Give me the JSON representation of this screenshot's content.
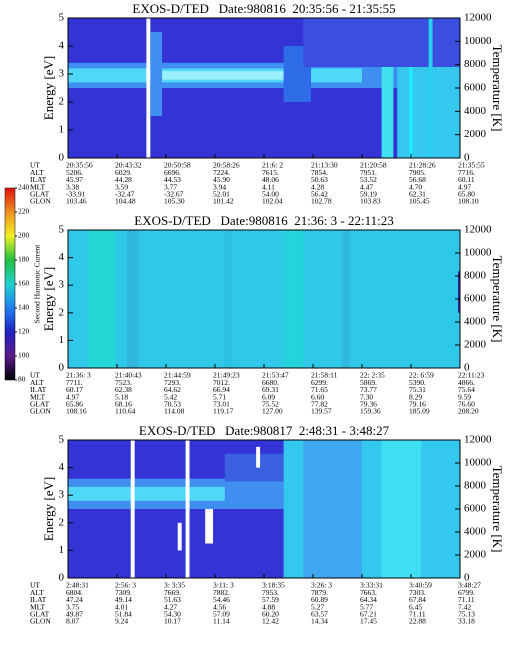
{
  "chart_data": [
    {
      "type": "spectrogram",
      "title": "EXOS-D/TED   Date:980816  20:35:56 - 21:35:55",
      "y_label": "Energy [eV]",
      "ylim": [
        0,
        5
      ],
      "yticks": [
        0,
        1,
        2,
        3,
        4,
        5
      ],
      "y2_label": "Temperature [K]",
      "y2lim": [
        0,
        12000
      ],
      "y2ticks": [
        0,
        2000,
        4000,
        6000,
        8000,
        10000,
        12000
      ],
      "ephemeris": {
        "labels": [
          "UT",
          "ALT",
          "ILAT",
          "MLT",
          "GLAT",
          "GLON"
        ],
        "rows": [
          [
            "20:35:56",
            "20:43:32",
            "20:50:58",
            "20:58:26",
            "21:6: 2",
            "21:13:30",
            "21:20:58",
            "21:28:26",
            "21:35:55"
          ],
          [
            "5206.",
            "6029.",
            "6696.",
            "7224.",
            "7615.",
            "7854.",
            "7951.",
            "7905.",
            "7716."
          ],
          [
            "45.97",
            "44.28",
            "44.53",
            "45.90",
            "48.06",
            "50.63",
            "53.52",
            "56.68",
            "60.11"
          ],
          [
            "3.38",
            "3.59",
            "3.77",
            "3.94",
            "4.11",
            "4.28",
            "4.47",
            "4.70",
            "4.97"
          ],
          [
            "-33.91",
            "-32.47",
            "-32.67",
            "52.01",
            "54.00",
            "56.42",
            "59.19",
            "62.31",
            "65.80"
          ],
          [
            "103.46",
            "104.48",
            "105.30",
            "101.42",
            "102.04",
            "102.78",
            "103.83",
            "105.45",
            "108.10"
          ]
        ]
      }
    },
    {
      "type": "spectrogram",
      "title": "EXOS-D/TED   Date:980816  21:36: 3 - 22:11:23",
      "y_label": "Energy [eV]",
      "ylim": [
        0,
        5
      ],
      "yticks": [
        0,
        1,
        2,
        3,
        4,
        5
      ],
      "y2_label": "Temperature [K]",
      "y2lim": [
        0,
        12000
      ],
      "y2ticks": [
        0,
        2000,
        4000,
        6000,
        8000,
        10000,
        12000
      ],
      "colorbar": {
        "label": "Second Harmonic Current",
        "lim": [
          80,
          240
        ],
        "ticks": [
          80,
          100,
          120,
          140,
          160,
          180,
          200,
          220,
          240
        ]
      },
      "ephemeris": {
        "labels": [
          "UT",
          "ALT",
          "ILAT",
          "MLT",
          "GLAT",
          "GLON"
        ],
        "rows": [
          [
            "21:36: 3",
            "21:40:43",
            "21:44:59",
            "21:49:23",
            "21:53:47",
            "21:58:11",
            "22: 2:35",
            "22: 6:59",
            "22:11:23"
          ],
          [
            "7711.",
            "7523.",
            "7293.",
            "7012.",
            "6680.",
            "6299.",
            "5869.",
            "5390.",
            "4866."
          ],
          [
            "60.17",
            "62.38",
            "64.62",
            "66.94",
            "69.31",
            "71.65",
            "73.77",
            "75.31",
            "75.64"
          ],
          [
            "4.97",
            "5.18",
            "5.42",
            "5.71",
            "6.09",
            "6.60",
            "7.30",
            "8.29",
            "9.59"
          ],
          [
            "65.86",
            "68.16",
            "70.53",
            "73.01",
            "75.52",
            "77.82",
            "79.36",
            "79.16",
            "76.60"
          ],
          [
            "108.16",
            "110.64",
            "114.08",
            "119.17",
            "127.00",
            "139.57",
            "159.36",
            "185.09",
            "208.20"
          ]
        ]
      }
    },
    {
      "type": "spectrogram",
      "title": "EXOS-D/TED   Date:980817  2:48:31 - 3:48:27",
      "y_label": "Energy [eV]",
      "ylim": [
        0,
        5
      ],
      "yticks": [
        0,
        1,
        2,
        3,
        4,
        5
      ],
      "y2_label": "Temperature [K]",
      "y2lim": [
        0,
        12000
      ],
      "y2ticks": [
        0,
        2000,
        4000,
        6000,
        8000,
        10000,
        12000
      ],
      "ephemeris": {
        "labels": [
          "UT",
          "ALT",
          "ILAT",
          "MLT",
          "GLAT",
          "GLON"
        ],
        "rows": [
          [
            "2:48:31",
            "2:56: 3",
            "3: 3:35",
            "3:11: 3",
            "3:18:35",
            "3:26: 3",
            "3:33:31",
            "3:40:59",
            "3:48:27"
          ],
          [
            "6804.",
            "7309.",
            "7669.",
            "7882.",
            "7953.",
            "7879.",
            "7663.",
            "7303.",
            "6799."
          ],
          [
            "47.24",
            "49.14",
            "51.63",
            "54.46",
            "57.59",
            "60.89",
            "64.34",
            "67.84",
            "71.11"
          ],
          [
            "3.75",
            "4.01",
            "4.27",
            "4.56",
            "4.88",
            "5.27",
            "5.77",
            "6.45",
            "7.42"
          ],
          [
            "49.87",
            "51.84",
            "54.30",
            "57.09",
            "60.20",
            "63.57",
            "67.21",
            "71.11",
            "75.13"
          ],
          [
            "8.07",
            "9.24",
            "10.17",
            "11.14",
            "12.42",
            "14.34",
            "17.45",
            "22.88",
            "33.18"
          ]
        ]
      }
    }
  ]
}
